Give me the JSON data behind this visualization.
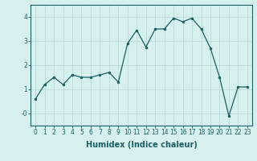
{
  "x": [
    0,
    1,
    2,
    3,
    4,
    5,
    6,
    7,
    8,
    9,
    10,
    11,
    12,
    13,
    14,
    15,
    16,
    17,
    18,
    19,
    20,
    21,
    22,
    23
  ],
  "y": [
    0.6,
    1.2,
    1.5,
    1.2,
    1.6,
    1.5,
    1.5,
    1.6,
    1.7,
    1.3,
    2.9,
    3.45,
    2.75,
    3.5,
    3.5,
    3.95,
    3.8,
    3.95,
    3.5,
    2.7,
    1.5,
    -0.1,
    1.1,
    1.1
  ],
  "line_color": "#1a6060",
  "marker": "o",
  "marker_size": 2,
  "bg_color": "#d6f0f0",
  "grid_color": "#c0dada",
  "xlabel": "Humidex (Indice chaleur)",
  "ylim": [
    -0.5,
    4.5
  ],
  "xlim": [
    -0.5,
    23.5
  ],
  "yticks": [
    0,
    1,
    2,
    3,
    4
  ],
  "ytick_labels": [
    "-0",
    "1",
    "2",
    "3",
    "4"
  ],
  "xticks": [
    0,
    1,
    2,
    3,
    4,
    5,
    6,
    7,
    8,
    9,
    10,
    11,
    12,
    13,
    14,
    15,
    16,
    17,
    18,
    19,
    20,
    21,
    22,
    23
  ],
  "tick_label_size": 5.5,
  "xlabel_size": 7
}
